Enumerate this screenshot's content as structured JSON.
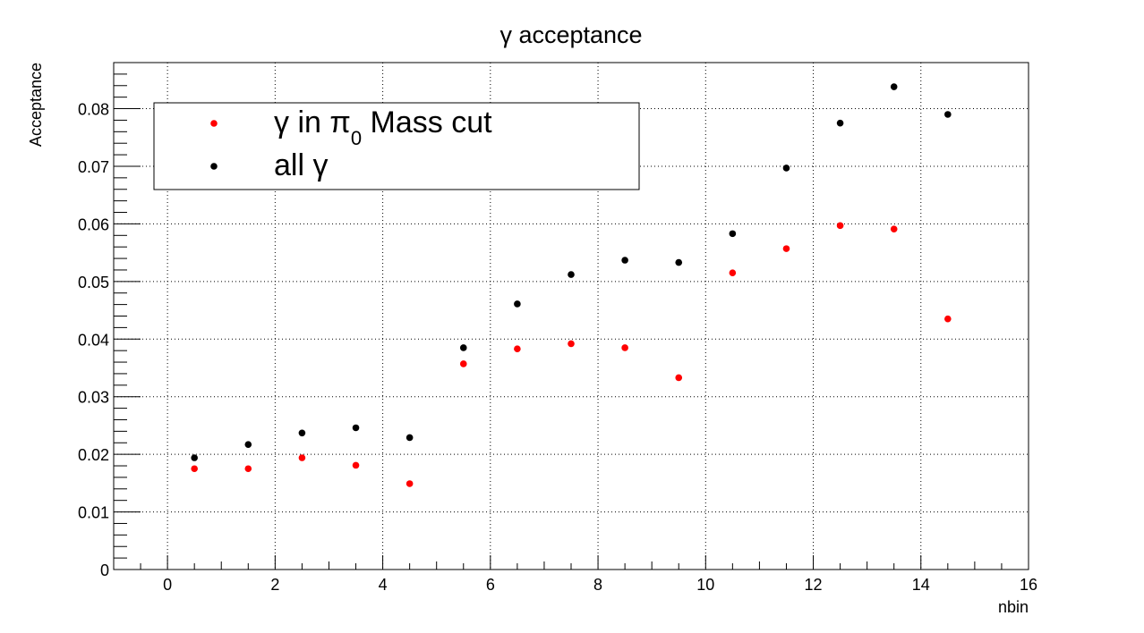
{
  "chart_data": {
    "type": "scatter",
    "title": "γ acceptance",
    "xlabel": "nbin",
    "ylabel": "Acceptance",
    "xlim": [
      -1,
      16
    ],
    "ylim": [
      0,
      0.088
    ],
    "grid": true,
    "legend_position": "top-left",
    "x_ticks": [
      0,
      2,
      4,
      6,
      8,
      10,
      12,
      14,
      16
    ],
    "x_tick_labels": [
      "0",
      "2",
      "4",
      "6",
      "8",
      "10",
      "12",
      "14",
      "16"
    ],
    "y_ticks": [
      0,
      0.01,
      0.02,
      0.03,
      0.04,
      0.05,
      0.06,
      0.07,
      0.08
    ],
    "y_tick_labels": [
      "0",
      "0.01",
      "0.02",
      "0.03",
      "0.04",
      "0.05",
      "0.06",
      "0.07",
      "0.08"
    ],
    "x": [
      0.5,
      1.5,
      2.5,
      3.5,
      4.5,
      5.5,
      6.5,
      7.5,
      8.5,
      9.5,
      10.5,
      11.5,
      12.5,
      13.5,
      14.5
    ],
    "series": [
      {
        "name": "γ in π0 Mass cut",
        "legend_main": "γ in π",
        "legend_sub": "0",
        "legend_tail": " Mass cut",
        "color": "#ff0000",
        "values": [
          0.0175,
          0.0175,
          0.0194,
          0.0181,
          0.0149,
          0.0357,
          0.0383,
          0.0392,
          0.0385,
          0.0333,
          0.0515,
          0.0557,
          0.0597,
          0.0591,
          0.0435
        ]
      },
      {
        "name": "all γ",
        "legend_main": "all γ",
        "legend_sub": "",
        "legend_tail": "",
        "color": "#000000",
        "values": [
          0.0194,
          0.0217,
          0.0237,
          0.0246,
          0.0229,
          0.0385,
          0.0461,
          0.0512,
          0.0537,
          0.0533,
          0.0583,
          0.0697,
          0.0775,
          0.0838,
          0.079
        ]
      }
    ]
  }
}
